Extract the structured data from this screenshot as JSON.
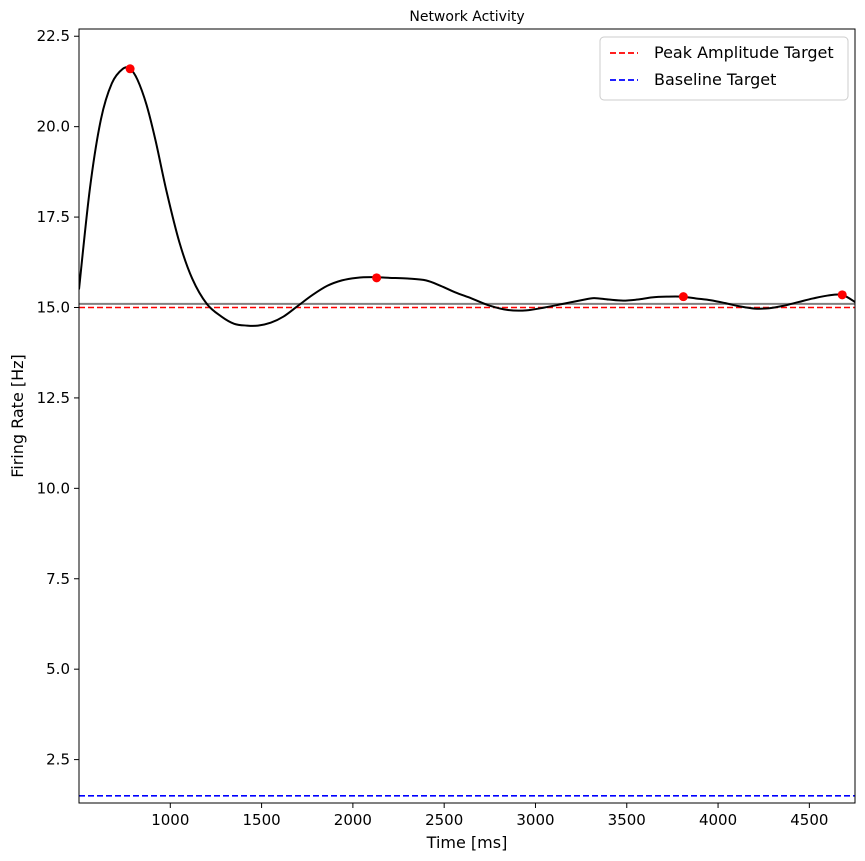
{
  "chart_data": {
    "type": "line",
    "title": "Network Activity",
    "xlabel": "Time [ms]",
    "ylabel": "Firing Rate [Hz]",
    "xlim": [
      500,
      4750
    ],
    "ylim": [
      1.3,
      22.7
    ],
    "x_ticks": [
      1000,
      1500,
      2000,
      2500,
      3000,
      3500,
      4000,
      4500
    ],
    "y_ticks": [
      2.5,
      5.0,
      7.5,
      10.0,
      12.5,
      15.0,
      17.5,
      20.0,
      22.5
    ],
    "x_tick_labels": [
      "1000",
      "1500",
      "2000",
      "2500",
      "3000",
      "3500",
      "4000",
      "4500"
    ],
    "y_tick_labels": [
      "2.5",
      "5.0",
      "7.5",
      "10.0",
      "12.5",
      "15.0",
      "17.5",
      "20.0",
      "22.5"
    ],
    "series": [
      {
        "name": "firing rate",
        "color": "#000000",
        "x": [
          500,
          560,
          620,
          680,
          740,
          780,
          820,
          870,
          920,
          980,
          1050,
          1120,
          1200,
          1280,
          1350,
          1420,
          1480,
          1550,
          1620,
          1700,
          1780,
          1860,
          1940,
          2020,
          2100,
          2200,
          2300,
          2400,
          2480,
          2560,
          2650,
          2750,
          2850,
          2950,
          3050,
          3150,
          3250,
          3320,
          3400,
          3480,
          3560,
          3640,
          3720,
          3800,
          3880,
          3960,
          4040,
          4120,
          4200,
          4280,
          4360,
          4440,
          4520,
          4600,
          4680,
          4750
        ],
        "y": [
          15.5,
          18.3,
          20.2,
          21.2,
          21.6,
          21.6,
          21.3,
          20.6,
          19.6,
          18.2,
          16.8,
          15.8,
          15.1,
          14.75,
          14.55,
          14.5,
          14.5,
          14.58,
          14.75,
          15.05,
          15.35,
          15.6,
          15.75,
          15.82,
          15.84,
          15.82,
          15.8,
          15.75,
          15.6,
          15.42,
          15.25,
          15.05,
          14.93,
          14.92,
          15.0,
          15.1,
          15.2,
          15.26,
          15.22,
          15.19,
          15.22,
          15.28,
          15.3,
          15.3,
          15.25,
          15.2,
          15.12,
          15.03,
          14.97,
          14.98,
          15.05,
          15.15,
          15.25,
          15.33,
          15.35,
          15.15
        ]
      }
    ],
    "peaks": {
      "color": "#ff0000",
      "x": [
        780,
        2130,
        3810,
        4680
      ],
      "y": [
        21.6,
        15.82,
        15.3,
        15.35
      ]
    },
    "reference_lines": [
      {
        "name": "Peak Amplitude Target",
        "y": 15.0,
        "color": "#ff0000",
        "style": "dashed"
      },
      {
        "name": "Baseline Target",
        "y": 1.5,
        "color": "#0000ff",
        "style": "dashed"
      },
      {
        "name": "mean",
        "y": 15.1,
        "color": "#808080",
        "style": "solid"
      }
    ],
    "legend": {
      "position": "top-right",
      "entries": [
        {
          "label": "Peak Amplitude Target",
          "color": "#ff0000"
        },
        {
          "label": "Baseline Target",
          "color": "#0000ff"
        }
      ]
    }
  }
}
